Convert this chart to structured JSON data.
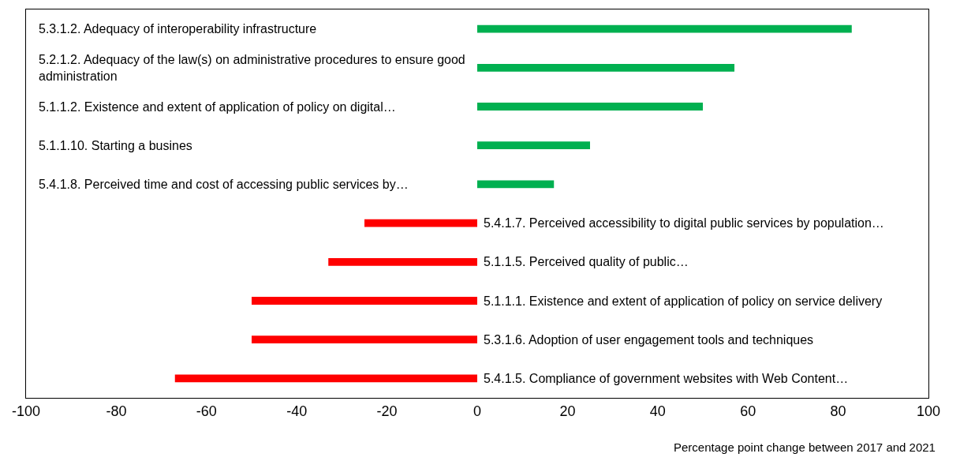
{
  "chart_data": {
    "type": "bar",
    "orientation": "horizontal",
    "categories": [
      "5.3.1.2. Adequacy of interoperability infrastructure",
      "5.2.1.2. Adequacy of the law(s) on administrative procedures to ensure good administration",
      "5.1.1.2. Existence and extent of application of policy on digital…",
      "5.1.1.10. Starting a busines",
      "5.4.1.8. Perceived time and cost of accessing public services by…",
      "5.4.1.7. Perceived accessibility to digital public services by population…",
      "5.1.1.5. Perceived quality of public…",
      "5.1.1.1. Existence and extent of application of policy on service delivery",
      "5.3.1.6. Adoption of user engagement tools and techniques",
      "5.4.1.5. Compliance of government websites with Web Content…"
    ],
    "values": [
      83,
      57,
      50,
      25,
      17,
      -25,
      -33,
      -50,
      -50,
      -67
    ],
    "colors": [
      "#00b050",
      "#00b050",
      "#00b050",
      "#00b050",
      "#00b050",
      "#ff0000",
      "#ff0000",
      "#ff0000",
      "#ff0000",
      "#ff0000"
    ],
    "xlim": [
      -100,
      100
    ],
    "xticks": [
      -100,
      -80,
      -60,
      -40,
      -20,
      0,
      20,
      40,
      60,
      80,
      100
    ],
    "xlabel": "Percentage point change between 2017 and 2021",
    "grid": false,
    "legend": false
  }
}
